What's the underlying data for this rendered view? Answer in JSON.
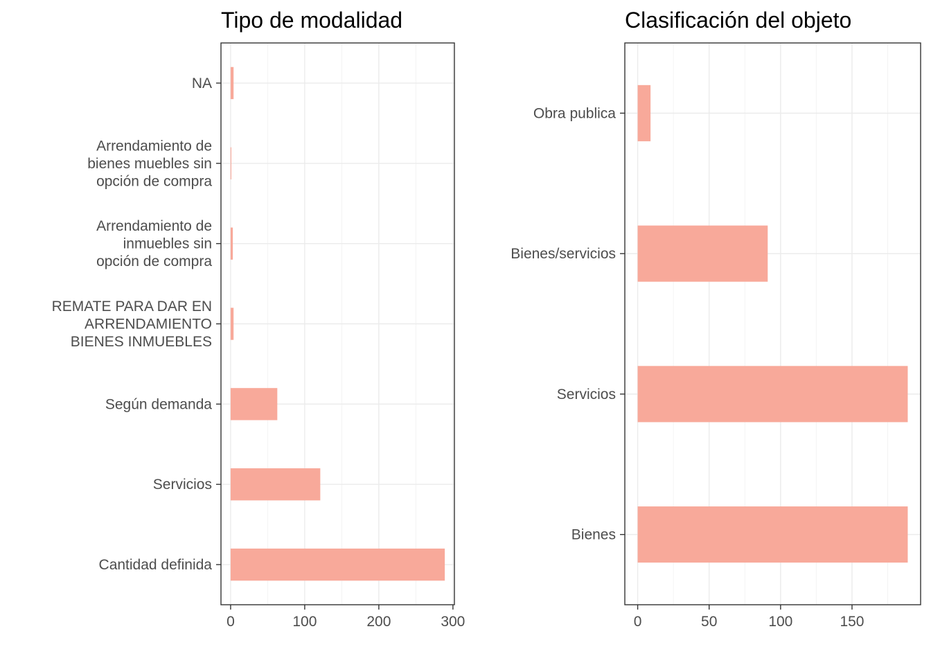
{
  "chart_data": [
    {
      "type": "bar",
      "orientation": "horizontal",
      "title": "Tipo de modalidad",
      "xlabel": "",
      "ylabel": "",
      "categories": [
        "NA",
        "Arrendamiento de\nbienes muebles sin\nopción de compra",
        "Arrendamiento de\ninmuebles sin\nopción de compra",
        "REMATE PARA DAR EN\nARRENDAMIENTO\nBIENES INMUEBLES",
        "Según demanda",
        "Servicios",
        "Cantidad definida"
      ],
      "values": [
        4,
        1,
        3,
        4,
        63,
        121,
        289
      ],
      "xlim": [
        -13,
        302
      ],
      "xticks": [
        0,
        100,
        200,
        300
      ],
      "xtick_labels": [
        "0",
        "100",
        "200",
        "300"
      ],
      "grid": true,
      "bar_color": "#f8a99a"
    },
    {
      "type": "bar",
      "orientation": "horizontal",
      "title": "Clasificación del objeto",
      "xlabel": "",
      "ylabel": "",
      "categories": [
        "Obra publica",
        "Bienes/servicios",
        "Servicios",
        "Bienes"
      ],
      "values": [
        9,
        91,
        189,
        189
      ],
      "xlim": [
        -9,
        198
      ],
      "xticks": [
        0,
        50,
        100,
        150
      ],
      "xtick_labels": [
        "0",
        "50",
        "100",
        "150"
      ],
      "grid": true,
      "bar_color": "#f8a99a"
    }
  ]
}
